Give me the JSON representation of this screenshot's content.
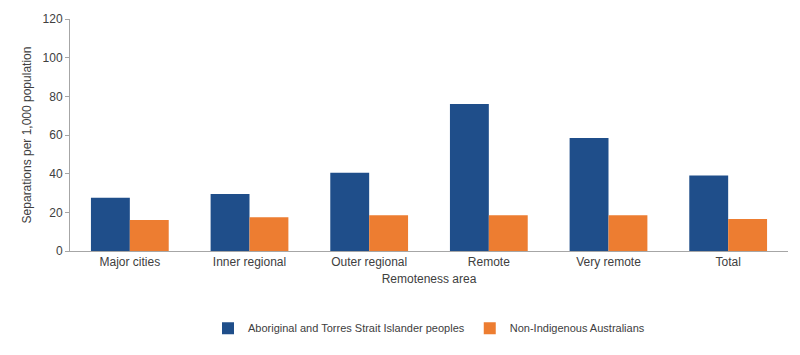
{
  "chart_data": {
    "type": "bar",
    "x_label": "Remoteness area",
    "y_label": "Separations per 1,000 population",
    "categories": [
      "Major cities",
      "Inner regional",
      "Outer regional",
      "Remote",
      "Very remote",
      "Total"
    ],
    "series": [
      {
        "name": "Aboriginal and Torres Strait Islander peoples",
        "color": "#1f4e8a",
        "values": [
          27.5,
          29.5,
          40.5,
          76,
          58.5,
          39
        ]
      },
      {
        "name": "Non-Indigenous Australians",
        "color": "#ed7d31",
        "values": [
          16,
          17.5,
          18.5,
          18.5,
          18.5,
          16.5
        ]
      }
    ],
    "ylim": [
      0,
      120
    ],
    "yticks": [
      0,
      20,
      40,
      60,
      80,
      100,
      120
    ],
    "grid": false,
    "legend": "bottom"
  }
}
